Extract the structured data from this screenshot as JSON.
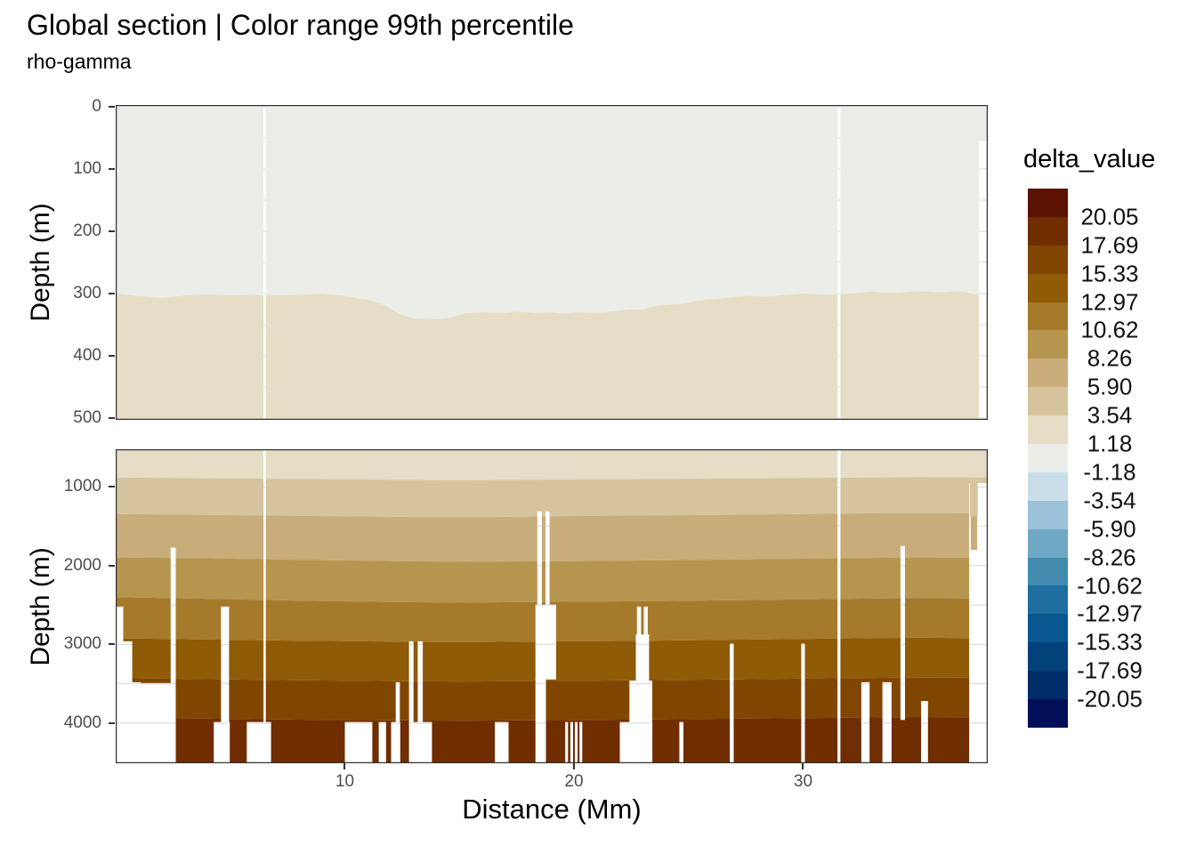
{
  "chart_data": {
    "type": "filled_contour_section",
    "title": "Global section | Color range 99th percentile",
    "subtitle": "rho-gamma",
    "depth_label": "Depth (m)",
    "x": {
      "label": "Distance (Mm)",
      "unit": "Mm",
      "range": [
        0,
        38.06
      ],
      "ticks": [
        10,
        20,
        30
      ]
    },
    "color_scale": {
      "title": "delta_value",
      "breaks": [
        "20.05",
        "17.69",
        "15.33",
        "12.97",
        "10.62",
        "8.26",
        "5.90",
        "3.54",
        "1.18",
        "-1.18",
        "-3.54",
        "-5.90",
        "-8.26",
        "-10.62",
        "-12.97",
        "-15.33",
        "-17.69",
        "-20.05"
      ],
      "colors": [
        "#5B1200",
        "#6F2D00",
        "#804600",
        "#8F5B06",
        "#A67A2B",
        "#B6954E",
        "#C8AD7B",
        "#D5C49E",
        "#E6DDC6",
        "#EBEDE8",
        "#C9DEE9",
        "#9BC2D8",
        "#6FA8C5",
        "#428BAF",
        "#1E6FA0",
        "#085690",
        "#03417A",
        "#012D68",
        "#000F57"
      ]
    },
    "panels": [
      {
        "id": "upper",
        "depth": {
          "range": [
            -3,
            503
          ],
          "ticks": [
            0,
            100,
            200,
            300,
            400,
            500
          ],
          "minor_grid_step": 50
        },
        "bands": [
          "#EBEDE8",
          "#E6DDC6"
        ],
        "band_values": [
          "[-1.18, 1.18]",
          "[1.18, 3.54]"
        ],
        "boundaries": [
          [
            [
              0,
              300
            ],
            [
              1,
              304
            ],
            [
              2,
              307
            ],
            [
              3,
              303
            ],
            [
              4,
              301
            ],
            [
              5,
              303
            ],
            [
              6,
              302
            ],
            [
              7,
              303
            ],
            [
              8,
              302
            ],
            [
              9,
              300
            ],
            [
              10,
              304
            ],
            [
              11,
              310
            ],
            [
              11.7,
              318
            ],
            [
              12.4,
              333
            ],
            [
              13,
              340
            ],
            [
              14,
              341
            ],
            [
              14.6,
              339
            ],
            [
              15.2,
              332
            ],
            [
              16,
              330
            ],
            [
              17,
              331
            ],
            [
              17.6,
              329
            ],
            [
              18.4,
              331
            ],
            [
              19,
              330
            ],
            [
              19.6,
              332
            ],
            [
              20.3,
              330
            ],
            [
              21,
              331
            ],
            [
              21.7,
              329
            ],
            [
              22.4,
              325
            ],
            [
              23,
              326
            ],
            [
              23.5,
              320
            ],
            [
              24,
              318
            ],
            [
              24.7,
              317
            ],
            [
              25.3,
              312
            ],
            [
              26,
              309
            ],
            [
              26.7,
              307
            ],
            [
              27.5,
              303
            ],
            [
              28.3,
              305
            ],
            [
              29,
              303
            ],
            [
              30,
              300
            ],
            [
              31,
              302
            ],
            [
              32,
              300
            ],
            [
              33,
              297
            ],
            [
              34,
              299
            ],
            [
              35,
              296
            ],
            [
              36,
              298
            ],
            [
              36.8,
              296
            ],
            [
              37.4,
              300
            ],
            [
              38.06,
              306
            ]
          ]
        ],
        "gaps": [
          [
            6.45,
            6.55,
            -3,
            503
          ],
          [
            31.5,
            31.63,
            -3,
            503
          ],
          [
            37.68,
            38.06,
            55,
            503
          ]
        ],
        "islands": []
      },
      {
        "id": "lower",
        "depth": {
          "range": [
            520,
            4510
          ],
          "ticks": [
            1000,
            2000,
            3000,
            4000
          ],
          "minor_grid_step": 500
        },
        "bands": [
          "#E6DDC6",
          "#D5C49E",
          "#C8AD7B",
          "#B6954E",
          "#A67A2B",
          "#8F5B06",
          "#804600",
          "#6F2D00"
        ],
        "band_values": [
          "[1.18, 3.54]",
          "[3.54, 5.90]",
          "[5.90, 8.26]",
          "[8.26, 10.62]",
          "[10.62, 12.97]",
          "[12.97, 15.33]",
          "[15.33, 17.69]",
          "[17.69, 20.05]"
        ],
        "boundaries": [
          [
            [
              0,
              878
            ],
            [
              4,
              888
            ],
            [
              8,
              898
            ],
            [
              12,
              908
            ],
            [
              15,
              915
            ],
            [
              18,
              908
            ],
            [
              21,
              903
            ],
            [
              24,
              898
            ],
            [
              27,
              892
            ],
            [
              30,
              884
            ],
            [
              33,
              878
            ],
            [
              35,
              873
            ],
            [
              37,
              876
            ],
            [
              38.06,
              880
            ]
          ],
          [
            [
              0,
              1342
            ],
            [
              4,
              1354
            ],
            [
              8,
              1366
            ],
            [
              12,
              1376
            ],
            [
              15,
              1382
            ],
            [
              18,
              1374
            ],
            [
              21,
              1366
            ],
            [
              24,
              1360
            ],
            [
              27,
              1352
            ],
            [
              30,
              1342
            ],
            [
              33,
              1334
            ],
            [
              35,
              1330
            ],
            [
              37,
              1334
            ],
            [
              38.06,
              1338
            ]
          ],
          [
            [
              0,
              1895
            ],
            [
              4,
              1905
            ],
            [
              8,
              1925
            ],
            [
              12,
              1940
            ],
            [
              15,
              1950
            ],
            [
              18,
              1944
            ],
            [
              21,
              1938
            ],
            [
              24,
              1930
            ],
            [
              27,
              1920
            ],
            [
              30,
              1910
            ],
            [
              33,
              1900
            ],
            [
              35,
              1894
            ],
            [
              37,
              1898
            ],
            [
              38.06,
              1902
            ]
          ],
          [
            [
              0,
              2400
            ],
            [
              4,
              2420
            ],
            [
              8,
              2445
            ],
            [
              12,
              2462
            ],
            [
              15,
              2470
            ],
            [
              18,
              2462
            ],
            [
              21,
              2456
            ],
            [
              24,
              2448
            ],
            [
              27,
              2438
            ],
            [
              30,
              2428
            ],
            [
              33,
              2418
            ],
            [
              35,
              2412
            ],
            [
              37,
              2416
            ],
            [
              38.06,
              2420
            ]
          ],
          [
            [
              0,
              2922
            ],
            [
              4,
              2938
            ],
            [
              8,
              2952
            ],
            [
              12,
              2964
            ],
            [
              15,
              2972
            ],
            [
              18,
              2964
            ],
            [
              21,
              2958
            ],
            [
              24,
              2950
            ],
            [
              27,
              2940
            ],
            [
              30,
              2930
            ],
            [
              33,
              2920
            ],
            [
              35,
              2914
            ],
            [
              37,
              2918
            ],
            [
              38.06,
              2922
            ]
          ],
          [
            [
              0,
              3428
            ],
            [
              4,
              3442
            ],
            [
              8,
              3456
            ],
            [
              12,
              3466
            ],
            [
              15,
              3472
            ],
            [
              18,
              3466
            ],
            [
              21,
              3460
            ],
            [
              24,
              3452
            ],
            [
              27,
              3444
            ],
            [
              30,
              3434
            ],
            [
              33,
              3426
            ],
            [
              35,
              3420
            ],
            [
              37,
              3424
            ],
            [
              38.06,
              3428
            ]
          ],
          [
            [
              0,
              3932
            ],
            [
              4,
              3944
            ],
            [
              8,
              3956
            ],
            [
              12,
              3964
            ],
            [
              15,
              3970
            ],
            [
              18,
              3964
            ],
            [
              21,
              3958
            ],
            [
              24,
              3952
            ],
            [
              27,
              3944
            ],
            [
              30,
              3936
            ],
            [
              33,
              3928
            ],
            [
              35,
              3922
            ],
            [
              37,
              3926
            ],
            [
              38.06,
              3930
            ]
          ]
        ],
        "gaps": [
          [
            0.0,
            0.33,
            2520,
            4510
          ],
          [
            0.27,
            0.72,
            2960,
            4510
          ],
          [
            0.5,
            1.1,
            3480,
            4510
          ],
          [
            1.05,
            2.55,
            3490,
            4510
          ],
          [
            0.05,
            2.56,
            3985,
            4510
          ],
          [
            2.4,
            2.62,
            1770,
            4510
          ],
          [
            4.6,
            4.95,
            2520,
            4510
          ],
          [
            4.28,
            4.98,
            3985,
            4510
          ],
          [
            6.45,
            6.55,
            520,
            4510
          ],
          [
            5.72,
            6.78,
            3985,
            4510
          ],
          [
            10.0,
            11.2,
            3985,
            4510
          ],
          [
            11.48,
            11.8,
            3985,
            4510
          ],
          [
            12.02,
            12.42,
            3985,
            4510
          ],
          [
            12.22,
            12.4,
            3480,
            4510
          ],
          [
            12.8,
            13.0,
            2960,
            4510
          ],
          [
            13.18,
            13.4,
            2960,
            4510
          ],
          [
            12.92,
            13.8,
            3985,
            4510
          ],
          [
            16.55,
            17.15,
            3985,
            4510
          ],
          [
            18.4,
            18.6,
            1310,
            2520
          ],
          [
            18.76,
            18.94,
            1310,
            2520
          ],
          [
            18.32,
            19.22,
            2500,
            3445
          ],
          [
            18.32,
            18.78,
            3430,
            4510
          ],
          [
            19.62,
            19.74,
            3985,
            4510
          ],
          [
            19.84,
            19.96,
            3985,
            4510
          ],
          [
            20.04,
            20.16,
            3985,
            4510
          ],
          [
            20.24,
            20.36,
            3985,
            4510
          ],
          [
            22.0,
            23.42,
            3985,
            4510
          ],
          [
            22.42,
            23.42,
            3460,
            4510
          ],
          [
            22.75,
            22.93,
            2520,
            2885
          ],
          [
            23.05,
            23.22,
            2520,
            2885
          ],
          [
            22.7,
            23.28,
            2875,
            3465
          ],
          [
            24.6,
            24.78,
            3985,
            4510
          ],
          [
            26.8,
            26.97,
            2990,
            4510
          ],
          [
            29.92,
            30.08,
            2990,
            4510
          ],
          [
            31.5,
            31.63,
            520,
            4510
          ],
          [
            32.54,
            32.9,
            3480,
            4510
          ],
          [
            33.46,
            33.86,
            3480,
            4510
          ],
          [
            34.25,
            34.45,
            1750,
            3960
          ],
          [
            35.15,
            35.45,
            3720,
            4510
          ],
          [
            37.25,
            38.06,
            950,
            4510
          ]
        ],
        "islands": [
          [
            37.28,
            37.62,
            950,
            1370,
            "#D5C49E"
          ],
          [
            37.32,
            37.6,
            1370,
            1800,
            "#C8AD7B"
          ]
        ]
      }
    ],
    "style": {
      "panel_border": "#333333",
      "tick_color": "#333333",
      "tick_label_color": "#4D4D4D",
      "gap_gridline_color": "#DEDEDE",
      "background": "#ffffff"
    }
  }
}
